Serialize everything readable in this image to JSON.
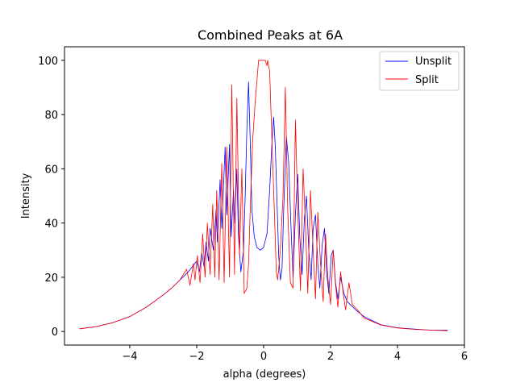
{
  "chart_data": {
    "type": "line",
    "title": "Combined Peaks at 6A",
    "xlabel": "alpha (degrees)",
    "ylabel": "Intensity",
    "xlim": [
      -5.95,
      6.0
    ],
    "ylim": [
      -5.0,
      105.0
    ],
    "xticks": [
      "−4",
      "−2",
      "0",
      "2",
      "4",
      "6"
    ],
    "xtick_values": [
      -4,
      -2,
      0,
      2,
      4,
      6
    ],
    "yticks": [
      "0",
      "20",
      "40",
      "60",
      "80",
      "100"
    ],
    "ytick_values": [
      0,
      20,
      40,
      60,
      80,
      100
    ],
    "grid": false,
    "legend_position": "top-right",
    "series": [
      {
        "name": "Unsplit",
        "color": "#0000ff",
        "x": [
          -5.5,
          -5.0,
          -4.5,
          -4.0,
          -3.5,
          -3.0,
          -2.75,
          -2.5,
          -2.25,
          -2.0,
          -1.92,
          -1.85,
          -1.78,
          -1.72,
          -1.65,
          -1.6,
          -1.5,
          -1.42,
          -1.38,
          -1.3,
          -1.25,
          -1.15,
          -1.1,
          -1.02,
          -0.97,
          -0.9,
          -0.86,
          -0.8,
          -0.75,
          -0.68,
          -0.6,
          -0.55,
          -0.5,
          -0.45,
          -0.4,
          -0.35,
          -0.28,
          -0.2,
          -0.1,
          0.0,
          0.1,
          0.18,
          0.25,
          0.3,
          0.35,
          0.4,
          0.45,
          0.5,
          0.55,
          0.6,
          0.68,
          0.75,
          0.82,
          0.88,
          0.95,
          1.02,
          1.08,
          1.15,
          1.22,
          1.28,
          1.35,
          1.42,
          1.48,
          1.55,
          1.62,
          1.68,
          1.75,
          1.82,
          1.88,
          1.95,
          2.02,
          2.08,
          2.15,
          2.22,
          2.3,
          2.4,
          2.5,
          2.75,
          3.0,
          3.5,
          4.0,
          4.5,
          5.0,
          5.5
        ],
        "y": [
          1.0,
          1.8,
          3.3,
          5.5,
          9.0,
          13.5,
          16.0,
          19.0,
          22.0,
          26.0,
          22.0,
          29.0,
          24.0,
          33.0,
          26.0,
          38.0,
          30.0,
          45.0,
          33.0,
          56.0,
          38.0,
          68.0,
          43.0,
          69.0,
          35.0,
          52.0,
          40.0,
          60.0,
          35.0,
          22.0,
          30.0,
          50.0,
          75.0,
          92.0,
          70.0,
          45.0,
          35.0,
          31.0,
          30.0,
          31.0,
          36.0,
          52.0,
          70.0,
          79.0,
          68.0,
          48.0,
          28.0,
          19.0,
          23.0,
          45.0,
          72.0,
          62.0,
          38.0,
          20.0,
          43.0,
          58.0,
          35.0,
          21.0,
          42.0,
          50.0,
          30.0,
          19.0,
          38.0,
          43.0,
          25.0,
          16.0,
          32.0,
          38.0,
          22.0,
          14.0,
          28.0,
          30.0,
          18.0,
          12.0,
          20.0,
          14.0,
          11.0,
          8.0,
          5.5,
          2.5,
          1.4,
          0.9,
          0.5,
          0.5
        ]
      },
      {
        "name": "Split",
        "color": "#ff0000",
        "x": [
          -5.5,
          -5.0,
          -4.5,
          -4.0,
          -3.5,
          -3.0,
          -2.75,
          -2.5,
          -2.3,
          -2.2,
          -2.1,
          -2.05,
          -1.98,
          -1.9,
          -1.82,
          -1.75,
          -1.68,
          -1.6,
          -1.52,
          -1.46,
          -1.4,
          -1.33,
          -1.25,
          -1.18,
          -1.1,
          -1.02,
          -0.95,
          -0.87,
          -0.8,
          -0.72,
          -0.65,
          -0.58,
          -0.5,
          -0.45,
          -0.4,
          -0.33,
          -0.25,
          -0.15,
          -0.12,
          -0.05,
          0.05,
          0.1,
          0.12,
          0.18,
          0.25,
          0.32,
          0.38,
          0.42,
          0.5,
          0.58,
          0.65,
          0.72,
          0.8,
          0.88,
          0.95,
          1.02,
          1.1,
          1.18,
          1.25,
          1.32,
          1.4,
          1.48,
          1.55,
          1.62,
          1.7,
          1.78,
          1.85,
          1.92,
          2.0,
          2.08,
          2.15,
          2.22,
          2.3,
          2.38,
          2.45,
          2.55,
          2.65,
          2.8,
          3.0,
          3.5,
          4.0,
          4.5,
          5.0,
          5.5
        ],
        "y": [
          1.0,
          1.8,
          3.3,
          5.5,
          9.0,
          13.5,
          16.0,
          19.0,
          23.0,
          17.0,
          25.0,
          19.0,
          28.0,
          18.0,
          36.0,
          20.0,
          40.0,
          21.0,
          47.0,
          20.0,
          52.0,
          19.0,
          62.0,
          18.0,
          68.0,
          20.0,
          91.0,
          21.0,
          86.0,
          28.0,
          60.0,
          14.0,
          16.0,
          25.0,
          45.0,
          70.0,
          85.0,
          100.0,
          100.0,
          100.0,
          100.0,
          98.0,
          100.0,
          96.0,
          70.0,
          45.0,
          22.0,
          19.0,
          30.0,
          50.0,
          90.0,
          45.0,
          18.0,
          16.0,
          78.0,
          45.0,
          15.0,
          60.0,
          40.0,
          14.0,
          52.0,
          30.0,
          12.0,
          44.0,
          25.0,
          11.0,
          36.0,
          20.0,
          10.0,
          30.0,
          17.0,
          9.0,
          22.0,
          14.0,
          8.0,
          18.0,
          10.0,
          8.0,
          5.0,
          2.4,
          1.3,
          0.8,
          0.5,
          0.3
        ]
      }
    ]
  }
}
